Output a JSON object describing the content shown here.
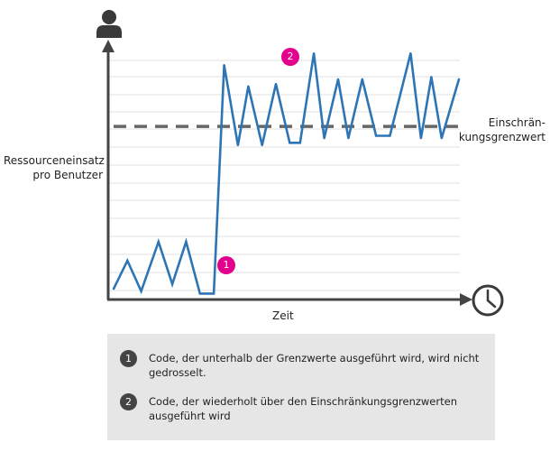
{
  "chart_data": {
    "type": "line",
    "title": "",
    "xlabel": "Zeit",
    "ylabel_lines": [
      "Ressourceneinsatz",
      "pro Benutzer"
    ],
    "grid": true,
    "x_ticks": [],
    "y_ticks": [],
    "threshold": {
      "value": 0.72,
      "label_lines": [
        "Einschrän-",
        "kungsgrenzwert"
      ],
      "style": "dashed"
    },
    "series": [
      {
        "name": "",
        "color": "#2e75b6",
        "x": [
          0,
          0.04,
          0.08,
          0.13,
          0.17,
          0.21,
          0.25,
          0.29,
          0.32,
          0.36,
          0.39,
          0.43,
          0.47,
          0.51,
          0.54,
          0.58,
          0.61,
          0.65,
          0.68,
          0.72,
          0.76,
          0.8,
          0.86,
          0.89,
          0.92,
          0.95,
          1.0
        ],
        "values": [
          0.03,
          0.15,
          0.02,
          0.23,
          0.05,
          0.23,
          0.01,
          0.01,
          0.98,
          0.64,
          0.89,
          0.64,
          0.9,
          0.65,
          0.65,
          1.03,
          0.67,
          0.92,
          0.67,
          0.92,
          0.68,
          0.68,
          1.03,
          0.67,
          0.93,
          0.67,
          0.92
        ]
      }
    ]
  },
  "markers": [
    {
      "label": "1"
    },
    {
      "label": "2"
    }
  ],
  "legend": [
    {
      "num": "1",
      "text": "Code, der unterhalb der Grenzwerte ausgeführt wird, wird nicht gedrosselt."
    },
    {
      "num": "2",
      "text": "Code, der wiederholt über den Einschränkungsgrenzwerten ausgeführt wird"
    }
  ],
  "icons": {
    "user": "user-icon",
    "clock": "clock-icon"
  },
  "colors": {
    "line": "#2e75b6",
    "marker": "#e3008c",
    "axis": "#444444",
    "threshold": "#666666",
    "legend_bg": "#e6e6e6"
  }
}
